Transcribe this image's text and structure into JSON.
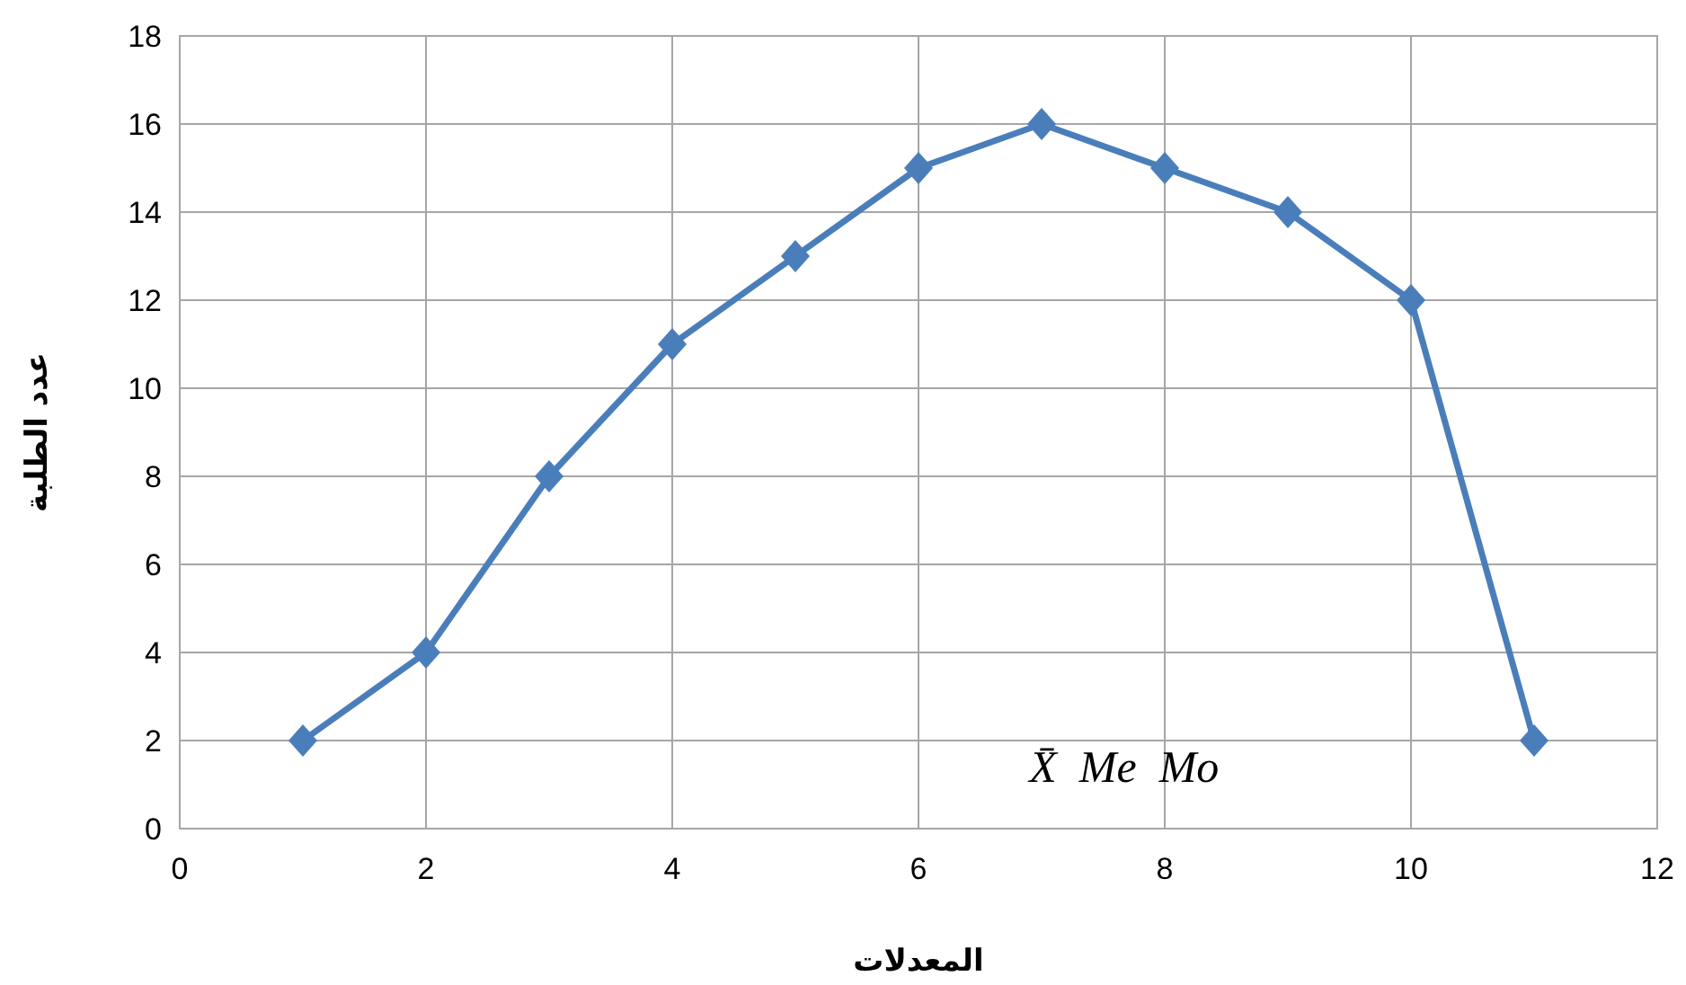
{
  "chart_data": {
    "type": "line",
    "xlabel": "المعدلات",
    "ylabel": "عدد الطلبة",
    "x": [
      1,
      2,
      3,
      4,
      5,
      6,
      7,
      8,
      9,
      10,
      11
    ],
    "values": [
      2,
      4,
      8,
      11,
      13,
      15,
      16,
      15,
      14,
      12,
      2
    ],
    "color": "#4a7ebb",
    "marker": "diamond",
    "line_style": "solid",
    "xlim": [
      0,
      12
    ],
    "xticks": [
      0,
      2,
      4,
      6,
      8,
      10,
      12
    ],
    "ylim": [
      0,
      18
    ],
    "yticks": [
      0,
      2,
      4,
      6,
      8,
      10,
      12,
      14,
      16,
      18
    ],
    "grid": true,
    "annotations": [
      "X̄  Me  Mo"
    ]
  }
}
